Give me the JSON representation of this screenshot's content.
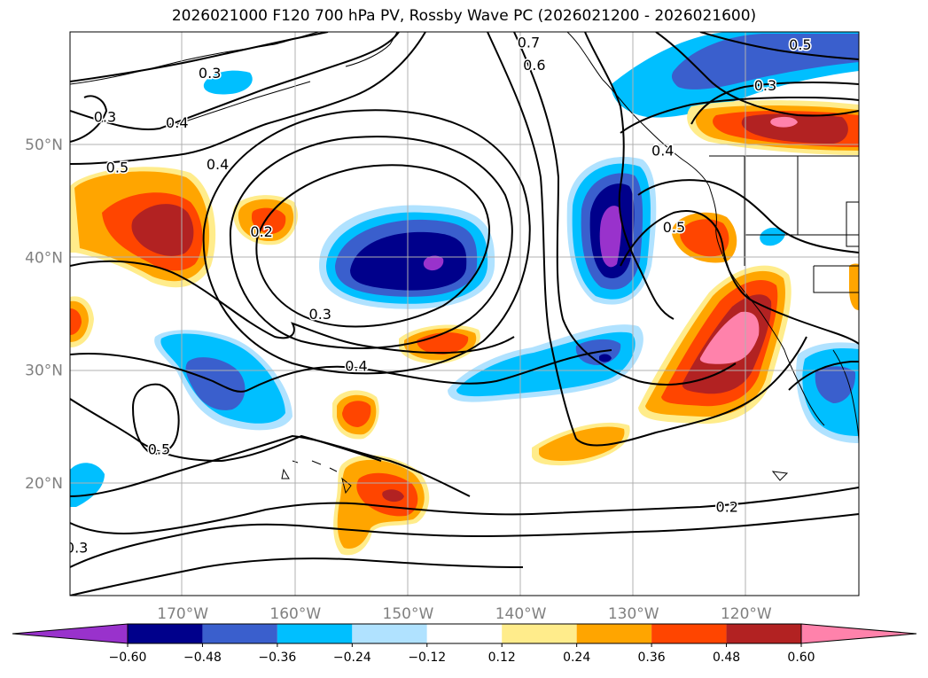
{
  "title": "2026021000 F120 700 hPa PV, Rossby Wave PC (2026021200 - 2026021600)",
  "map": {
    "lon_range": [
      -180,
      -110
    ],
    "lat_range": [
      10,
      60
    ],
    "lon_ticks": [
      {
        "lon": -170,
        "label": "170°W"
      },
      {
        "lon": -160,
        "label": "160°W"
      },
      {
        "lon": -150,
        "label": "150°W"
      },
      {
        "lon": -140,
        "label": "140°W"
      },
      {
        "lon": -130,
        "label": "130°W"
      },
      {
        "lon": -120,
        "label": "120°W"
      }
    ],
    "lat_ticks": [
      {
        "lat": 20,
        "label": "20°N"
      },
      {
        "lat": 30,
        "label": "30°N"
      },
      {
        "lat": 40,
        "label": "40°N"
      },
      {
        "lat": 50,
        "label": "50°N"
      }
    ],
    "grid": true
  },
  "colorbar": {
    "levels": [
      "-0.60",
      "-0.48",
      "-0.36",
      "-0.24",
      "-0.12",
      "0.12",
      "0.24",
      "0.36",
      "0.48",
      "0.60"
    ],
    "colors": [
      "#9932CC",
      "#00008B",
      "#3A5FCD",
      "#00BFFF",
      "#B0E2FF",
      "#FFFFFF",
      "#FFEC8B",
      "#FFA500",
      "#FF4500",
      "#B22222",
      "#FF82AB"
    ],
    "extend": "both"
  },
  "contour_labels": [
    {
      "text": "0.3",
      "lon": -167.6,
      "lat": 56.4
    },
    {
      "text": "0.4",
      "lon": -170.5,
      "lat": 52.0
    },
    {
      "text": "0.3",
      "lon": -176.9,
      "lat": 52.5
    },
    {
      "text": "0.5",
      "lon": -175.8,
      "lat": 48.0
    },
    {
      "text": "0.4",
      "lon": -166.9,
      "lat": 48.3
    },
    {
      "text": "0.2",
      "lon": -163.0,
      "lat": 42.3
    },
    {
      "text": "0.3",
      "lon": -157.8,
      "lat": 35.0
    },
    {
      "text": "0.4",
      "lon": -154.6,
      "lat": 30.4
    },
    {
      "text": "0.5",
      "lon": -172.1,
      "lat": 23.0
    },
    {
      "text": "0.3",
      "lon": -179.4,
      "lat": 14.3
    },
    {
      "text": "0.7",
      "lon": -139.3,
      "lat": 59.1
    },
    {
      "text": "0.6",
      "lon": -138.8,
      "lat": 57.1
    },
    {
      "text": "0.5",
      "lon": -115.2,
      "lat": 58.9
    },
    {
      "text": "0.3",
      "lon": -118.3,
      "lat": 55.3
    },
    {
      "text": "0.4",
      "lon": -127.4,
      "lat": 49.5
    },
    {
      "text": "0.5",
      "lon": -126.4,
      "lat": 42.7
    },
    {
      "text": "0.2",
      "lon": -121.7,
      "lat": 17.9
    }
  ],
  "legend_note": ""
}
